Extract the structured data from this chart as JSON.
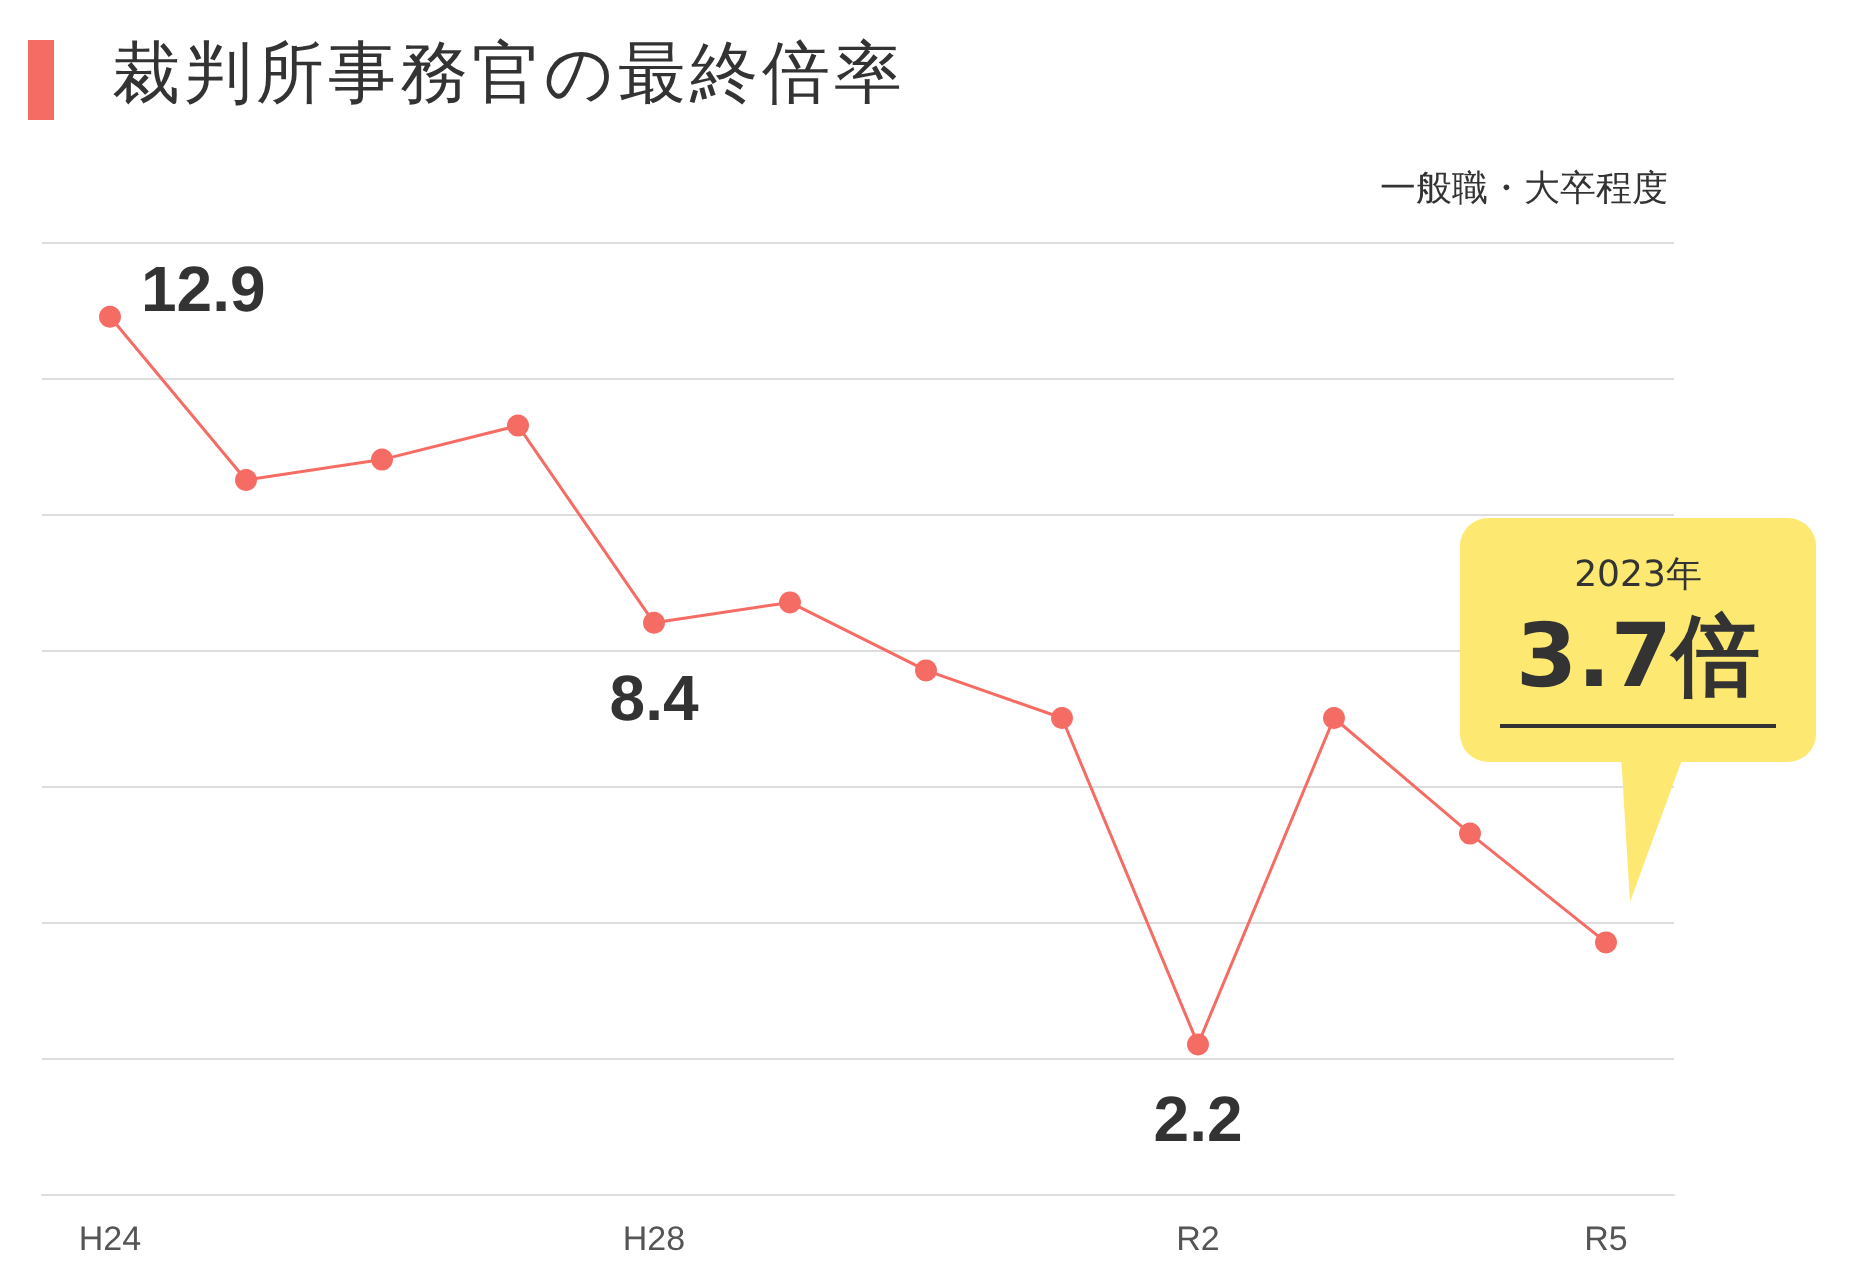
{
  "chart_data": {
    "type": "line",
    "title": "裁判所事務官の最終倍率",
    "subtitle": "一般職・大卒程度",
    "categories": [
      "H24",
      null,
      null,
      null,
      "H28",
      null,
      null,
      null,
      "R2",
      null,
      null,
      "R5"
    ],
    "series": [
      {
        "color": "#f56c64",
        "values": [
          12.9,
          10.5,
          10.8,
          11.3,
          8.4,
          8.7,
          7.7,
          7.0,
          2.2,
          7.0,
          5.3,
          3.7
        ],
        "value_labels": [
          "12.9",
          null,
          null,
          null,
          "8.4",
          null,
          null,
          null,
          "2.2",
          null,
          null,
          null
        ]
      }
    ],
    "annotations": [
      "2023年",
      "3.7倍"
    ],
    "ylim": [
      0,
      14
    ],
    "yticks": [
      0,
      2,
      4,
      6,
      8,
      10,
      12,
      14
    ],
    "tick_labels": "x",
    "grid": "y",
    "marker": "circle",
    "line_style": "solid"
  }
}
